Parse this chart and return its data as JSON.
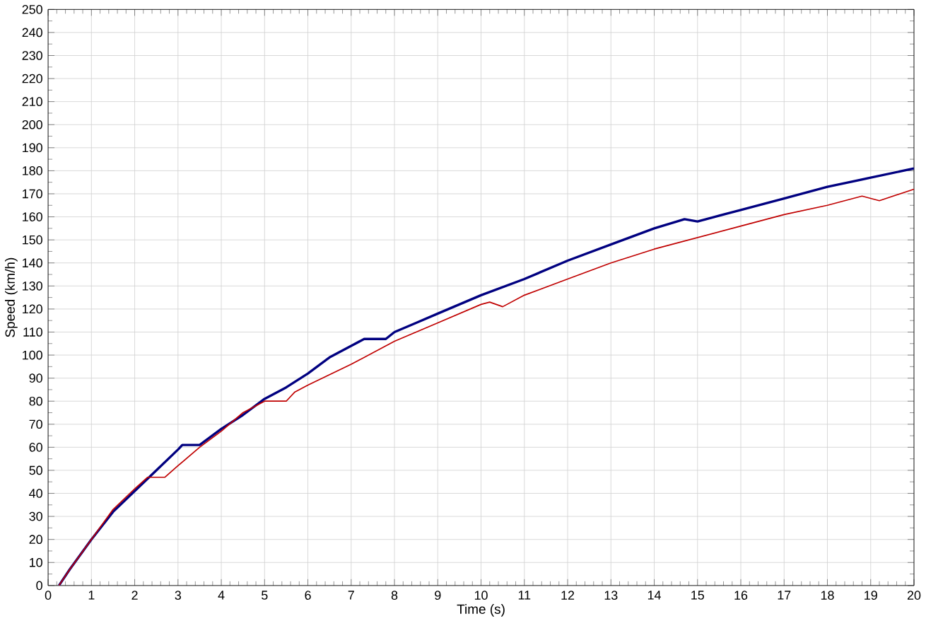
{
  "chart_data": {
    "type": "line",
    "xlabel": "Time (s)",
    "ylabel": "Speed (km/h)",
    "xlim": [
      0,
      20
    ],
    "ylim": [
      0,
      250
    ],
    "xticks": [
      0,
      1,
      2,
      3,
      4,
      5,
      6,
      7,
      8,
      9,
      10,
      11,
      12,
      13,
      14,
      15,
      16,
      17,
      18,
      19,
      20
    ],
    "yticks": [
      0,
      10,
      20,
      30,
      40,
      50,
      60,
      70,
      80,
      90,
      100,
      110,
      120,
      130,
      140,
      150,
      160,
      170,
      180,
      190,
      200,
      210,
      220,
      230,
      240,
      250
    ],
    "grid": true,
    "marker": "none",
    "line_style": "solid",
    "series": [
      {
        "color": "#000080",
        "x": [
          0.25,
          0.5,
          1,
          1.5,
          2,
          2.5,
          3,
          3.1,
          3.5,
          4,
          4.5,
          5,
          5.5,
          6,
          6.5,
          7,
          7.3,
          7.8,
          8,
          8.5,
          9,
          9.5,
          10,
          11,
          12,
          13,
          14,
          14.7,
          15,
          15.2,
          16,
          17,
          18,
          19,
          20
        ],
        "values": [
          0,
          7,
          20,
          32,
          41,
          50,
          59,
          61,
          61,
          68,
          74,
          81,
          86,
          92,
          99,
          104,
          107,
          107,
          110,
          114,
          118,
          122,
          126,
          133,
          141,
          148,
          155,
          159,
          158,
          159,
          163,
          168,
          173,
          177,
          181
        ]
      },
      {
        "color": "#c00000",
        "x": [
          0.25,
          0.5,
          1,
          1.5,
          2,
          2.3,
          2.7,
          3,
          3.5,
          4,
          4.5,
          5,
          5.5,
          5.7,
          6,
          7,
          8,
          9,
          10,
          10.2,
          10.5,
          11,
          12,
          13,
          14,
          15,
          16,
          17,
          18,
          18.8,
          19.2,
          20
        ],
        "values": [
          0,
          7,
          20,
          33,
          42,
          47,
          47,
          52,
          60,
          67,
          75,
          80,
          80,
          84,
          87,
          96,
          106,
          114,
          122,
          123,
          121,
          126,
          133,
          140,
          146,
          151,
          156,
          161,
          165,
          169,
          167,
          172
        ]
      }
    ]
  }
}
